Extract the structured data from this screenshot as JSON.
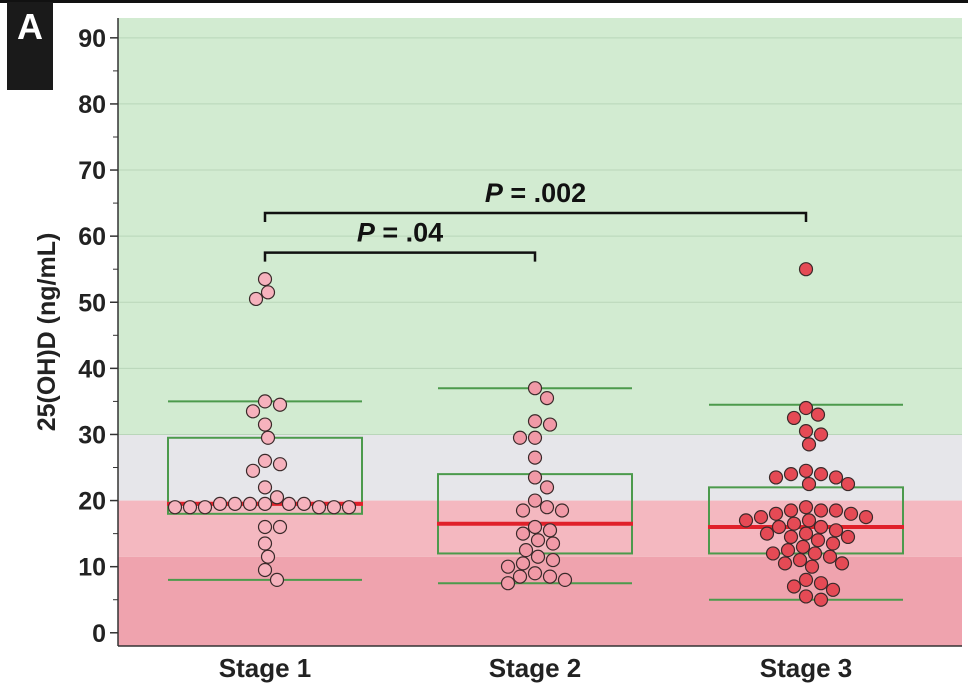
{
  "panel_label": "A",
  "chart_data": {
    "type": "box-swarm",
    "ylabel": "25(OH)D (ng/mL)",
    "xlabel": "",
    "ylim": [
      -2,
      93
    ],
    "yticks": [
      0,
      10,
      20,
      30,
      40,
      50,
      60,
      70,
      80,
      90
    ],
    "categories": [
      "Stage 1",
      "Stage 2",
      "Stage 3"
    ],
    "bands": [
      {
        "from": 30,
        "to": 93,
        "color": "#d2ebd1"
      },
      {
        "from": 20,
        "to": 30,
        "color": "#e6e6ea"
      },
      {
        "from": 11.5,
        "to": 20,
        "color": "#f4b8c0"
      },
      {
        "from": -2,
        "to": 11.5,
        "color": "#efa3ae"
      }
    ],
    "colors": {
      "box": "#4c9a4c",
      "median": "#e0202a",
      "gridline": "#b9d6b9",
      "bracket": "#111111"
    },
    "groups": [
      {
        "name": "Stage 1",
        "point_color": "#f6b2bd",
        "whisker_low": 8,
        "q1": 18,
        "median": 19.5,
        "q3": 29.5,
        "whisker_high": 35,
        "points": [
          53.5,
          51.5,
          50.5,
          35,
          34.5,
          33.5,
          31.5,
          29.5,
          26,
          25.5,
          24.5,
          22,
          20.5,
          19.5,
          19.5,
          19.5,
          19.5,
          19.5,
          19.5,
          19,
          19,
          19,
          19,
          19,
          19,
          16,
          16,
          13.5,
          11.5,
          9.5,
          8
        ]
      },
      {
        "name": "Stage 2",
        "point_color": "#f19aa7",
        "whisker_low": 7.5,
        "q1": 12,
        "median": 16.5,
        "q3": 24,
        "whisker_high": 37,
        "points": [
          37,
          35.5,
          32,
          31.5,
          29.5,
          29.5,
          26.5,
          23.5,
          22,
          20,
          19,
          18.5,
          18.5,
          16,
          15.5,
          15,
          14,
          13.5,
          12.5,
          11.5,
          11,
          10.5,
          10,
          9,
          8.5,
          8.5,
          7.5,
          8
        ]
      },
      {
        "name": "Stage 3",
        "point_color": "#e54a55",
        "whisker_low": 5,
        "q1": 12,
        "median": 16,
        "q3": 22,
        "whisker_high": 34.5,
        "points": [
          55,
          34,
          33,
          32.5,
          30.5,
          30,
          28.5,
          24.5,
          24,
          24,
          23.5,
          23.5,
          22.5,
          22.5,
          19,
          18.5,
          18.5,
          18.5,
          18,
          18,
          17.5,
          17.5,
          17,
          17,
          16.5,
          16,
          16,
          15.5,
          15,
          15,
          14.5,
          14.5,
          14,
          13.5,
          13,
          12.5,
          12,
          12,
          11.5,
          11,
          10.5,
          10.5,
          10,
          8,
          7.5,
          7,
          6.5,
          5.5,
          5
        ]
      }
    ],
    "annotations": [
      {
        "label": "P = .04",
        "from": "Stage 1",
        "to": "Stage 2",
        "y": 57.5
      },
      {
        "label": "P = .002",
        "from": "Stage 1",
        "to": "Stage 3",
        "y": 63.5
      }
    ]
  }
}
